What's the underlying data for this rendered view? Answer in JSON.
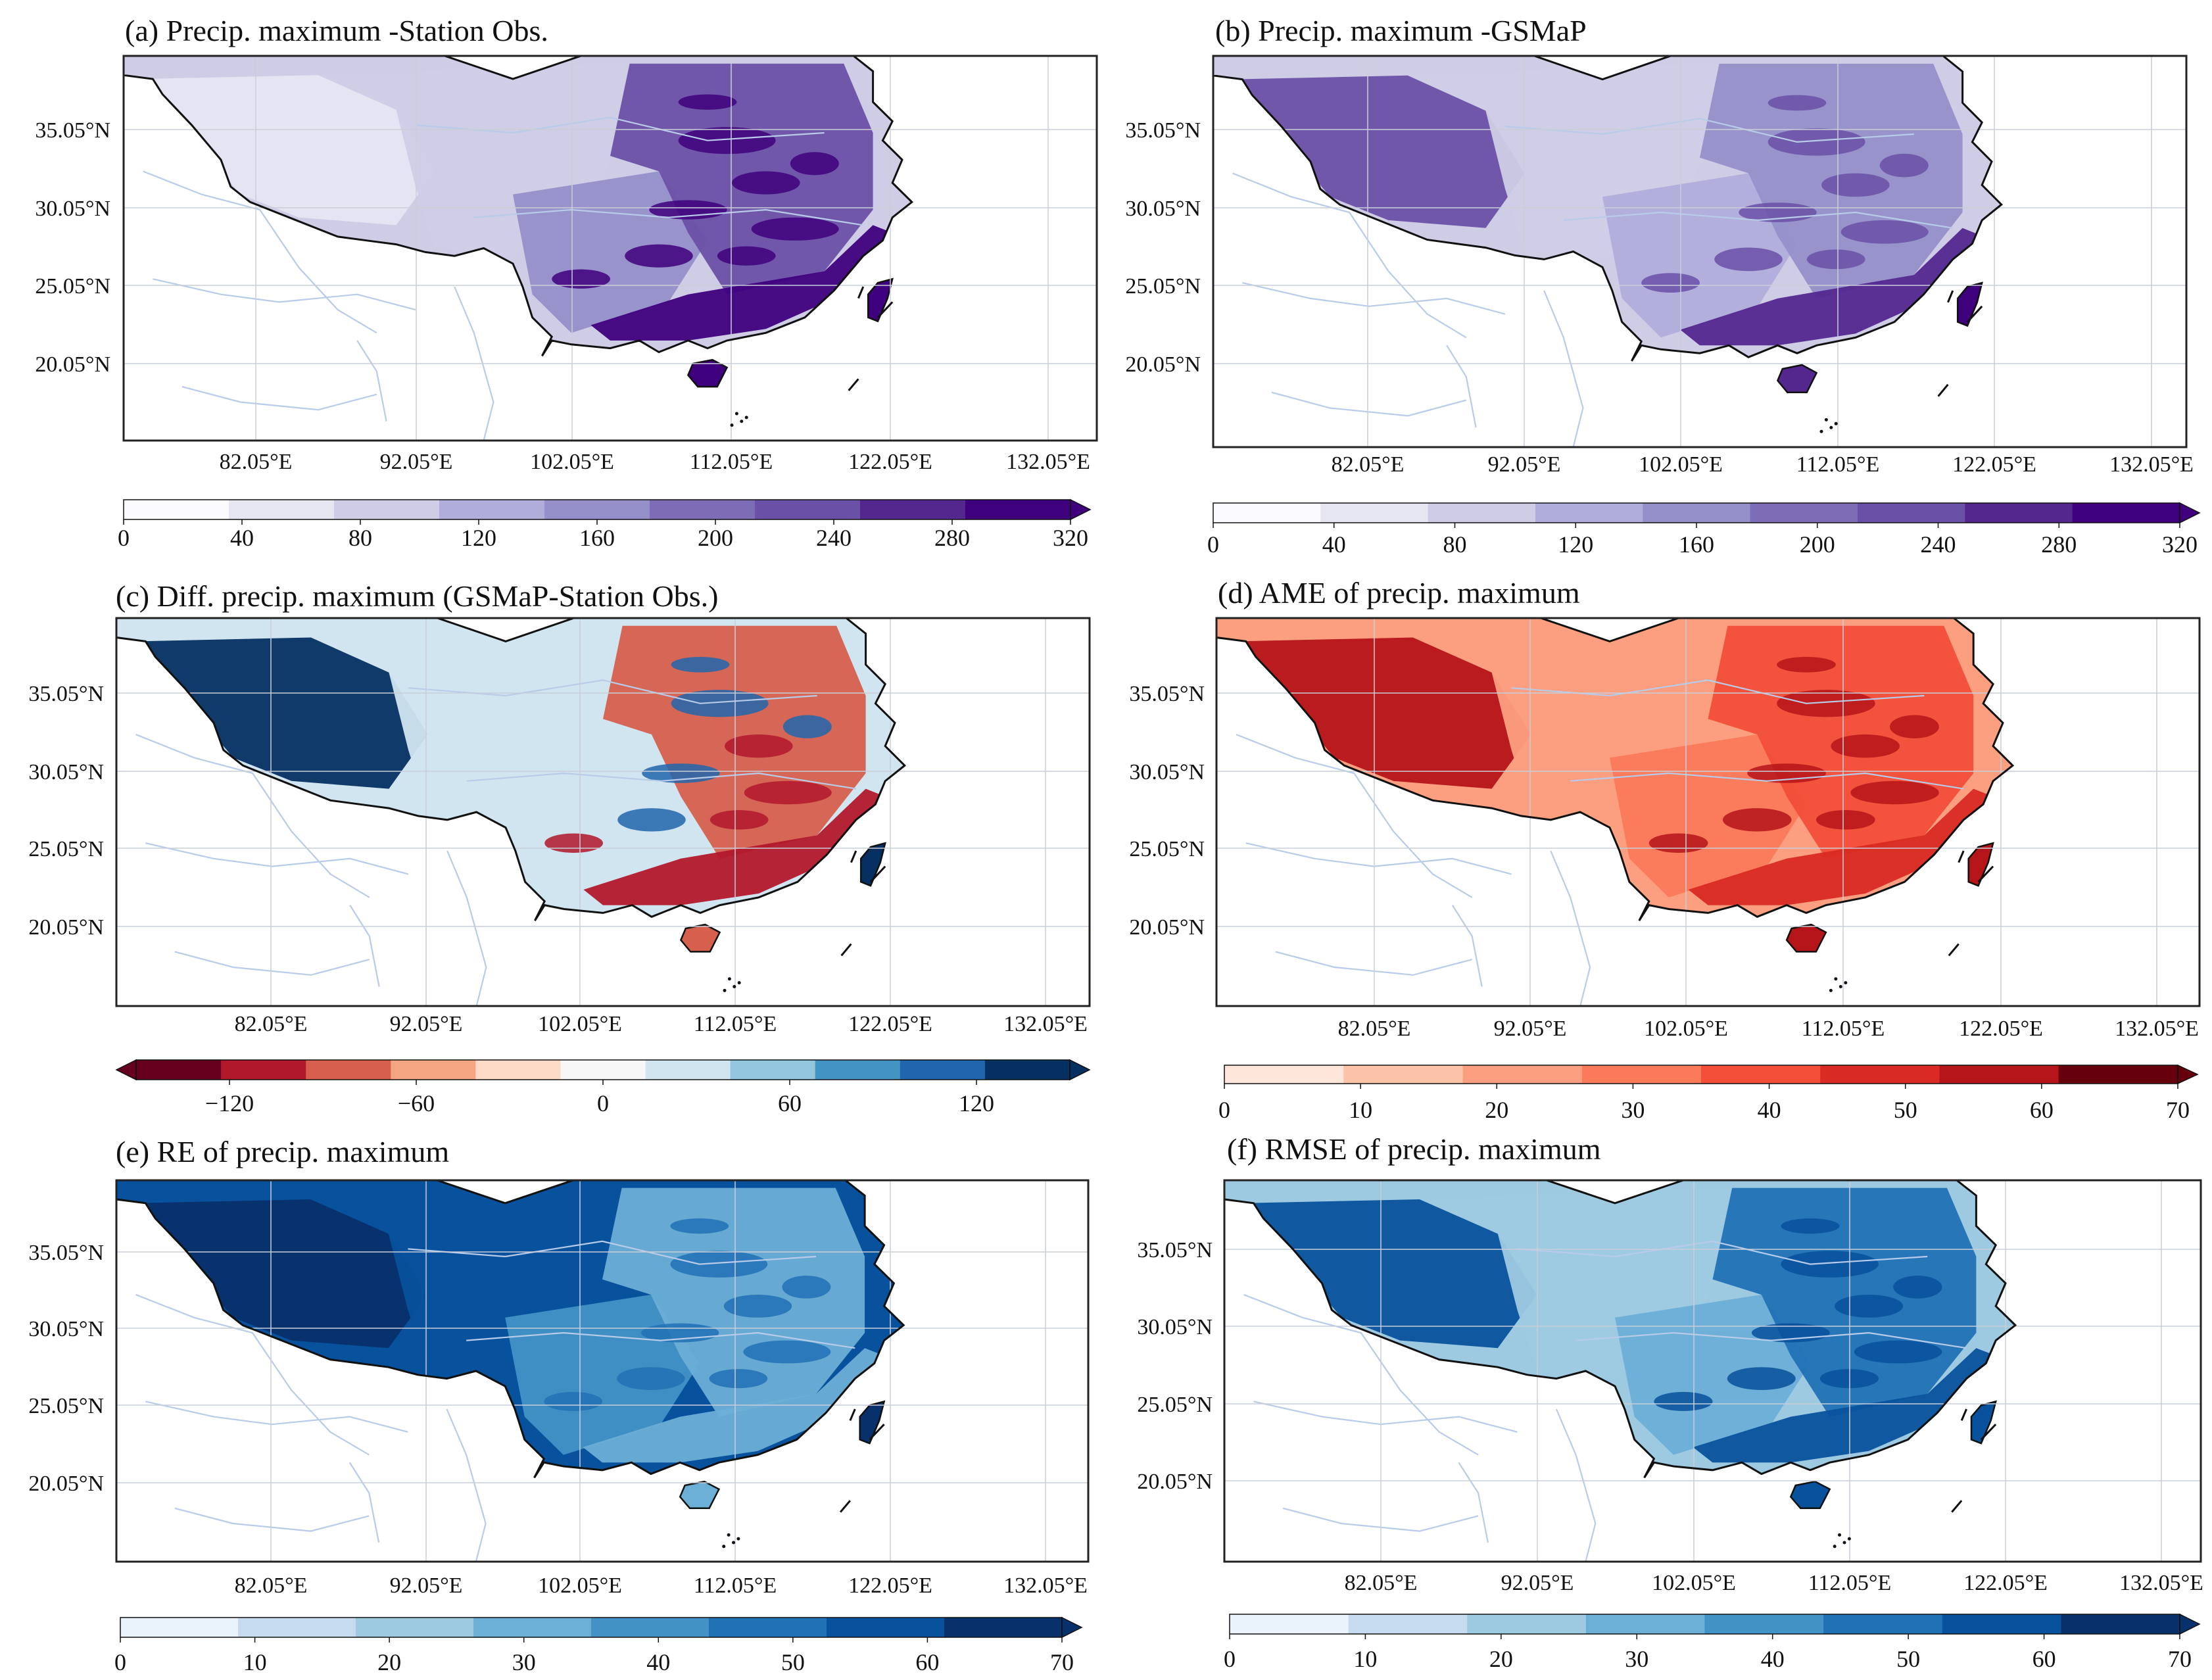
{
  "figure": {
    "panels": [
      {
        "id": "a",
        "title": "(a) Precip. maximum -Station Obs.",
        "colormap": "purples",
        "colorbar": {
          "min": 0,
          "max": 320,
          "ticks": [
            "0",
            "40",
            "80",
            "120",
            "160",
            "200",
            "240",
            "280",
            "320"
          ],
          "diverging": false
        },
        "field_levels": {
          "west": 0.12,
          "plateau": 0.2,
          "basin": 0.45,
          "east": 0.72,
          "coast": 0.95,
          "taiwan": 0.95,
          "hainan": 0.95
        },
        "lat_labels": [
          "35.05°N",
          "30.05°N",
          "25.05°N",
          "20.05°N"
        ],
        "lon_labels": [
          "82.05°E",
          "92.05°E",
          "102.05°E",
          "112.05°E",
          "122.05°E",
          "132.05°E"
        ]
      },
      {
        "id": "b",
        "title": "(b) Precip. maximum -GSMaP",
        "colormap": "purples",
        "colorbar": {
          "min": 0,
          "max": 320,
          "ticks": [
            "0",
            "40",
            "80",
            "120",
            "160",
            "200",
            "240",
            "280",
            "320"
          ],
          "diverging": false
        },
        "field_levels": {
          "west": 0.8,
          "plateau": 0.25,
          "basin": 0.4,
          "east": 0.55,
          "coast": 0.9,
          "taiwan": 0.95,
          "hainan": 0.9
        },
        "lat_labels": [
          "35.05°N",
          "30.05°N",
          "25.05°N",
          "20.05°N"
        ],
        "lon_labels": [
          "82.05°E",
          "92.05°E",
          "102.05°E",
          "112.05°E",
          "122.05°E",
          "132.05°E"
        ]
      },
      {
        "id": "c",
        "title": "(c) Diff. precip. maximum (GSMaP-Station Obs.)",
        "colormap": "rdbu",
        "colorbar": {
          "min": -150,
          "max": 150,
          "ticks": [
            "−120",
            "−60",
            "0",
            "60",
            "120"
          ],
          "tick_values": [
            -120,
            -60,
            0,
            60,
            120
          ],
          "diverging": true
        },
        "field_levels": {
          "west": 0.95,
          "plateau": 0.6,
          "basin": 0.55,
          "east": 0.2,
          "coast": 0.1,
          "taiwan": 0.95,
          "hainan": 0.15
        },
        "lat_labels": [
          "35.05°N",
          "30.05°N",
          "25.05°N",
          "20.05°N"
        ],
        "lon_labels": [
          "82.05°E",
          "92.05°E",
          "102.05°E",
          "112.05°E",
          "122.05°E",
          "132.05°E"
        ]
      },
      {
        "id": "d",
        "title": "(d) AME of precip. maximum",
        "colormap": "reds",
        "colorbar": {
          "min": 0,
          "max": 70,
          "ticks": [
            "0",
            "10",
            "20",
            "30",
            "40",
            "50",
            "60",
            "70"
          ],
          "diverging": false
        },
        "field_levels": {
          "west": 0.85,
          "plateau": 0.3,
          "basin": 0.45,
          "east": 0.6,
          "coast": 0.75,
          "taiwan": 0.85,
          "hainan": 0.85
        },
        "lat_labels": [
          "35.05°N",
          "30.05°N",
          "25.05°N",
          "20.05°N"
        ],
        "lon_labels": [
          "82.05°E",
          "92.05°E",
          "102.05°E",
          "112.05°E",
          "122.05°E",
          "132.05°E"
        ]
      },
      {
        "id": "e",
        "title": "(e) RE of precip. maximum",
        "colormap": "blues",
        "colorbar": {
          "min": 0,
          "max": 70,
          "ticks": [
            "0",
            "10",
            "20",
            "30",
            "40",
            "50",
            "60",
            "70"
          ],
          "diverging": false
        },
        "field_levels": {
          "west": 1.0,
          "plateau": 0.85,
          "basin": 0.6,
          "east": 0.45,
          "coast": 0.45,
          "taiwan": 0.95,
          "hainan": 0.4
        },
        "lat_labels": [
          "35.05°N",
          "30.05°N",
          "25.05°N",
          "20.05°N"
        ],
        "lon_labels": [
          "82.05°E",
          "92.05°E",
          "102.05°E",
          "112.05°E",
          "122.05°E",
          "132.05°E"
        ]
      },
      {
        "id": "f",
        "title": "(f) RMSE of precip. maximum",
        "colormap": "blues",
        "colorbar": {
          "min": 0,
          "max": 70,
          "ticks": [
            "0",
            "10",
            "20",
            "30",
            "40",
            "50",
            "60",
            "70"
          ],
          "diverging": false
        },
        "field_levels": {
          "west": 0.85,
          "plateau": 0.25,
          "basin": 0.45,
          "east": 0.7,
          "coast": 0.9,
          "taiwan": 0.9,
          "hainan": 0.9
        },
        "lat_labels": [
          "35.05°N",
          "30.05°N",
          "25.05°N",
          "20.05°N"
        ],
        "lon_labels": [
          "82.05°E",
          "92.05°E",
          "102.05°E",
          "112.05°E",
          "122.05°E",
          "132.05°E"
        ]
      }
    ],
    "colors": {
      "purples": [
        "#fbfaff",
        "#e6e5f2",
        "#cfcde6",
        "#b1addb",
        "#9590c9",
        "#7c6db6",
        "#6a50a7",
        "#54278f",
        "#3f007d"
      ],
      "reds": [
        "#fee5d9",
        "#fcc3a8",
        "#fc9f80",
        "#fb7a5a",
        "#f24e38",
        "#d92a23",
        "#b51419",
        "#67000d"
      ],
      "blues": [
        "#eaf2fb",
        "#c6dbef",
        "#9ecae1",
        "#6baed6",
        "#4292c6",
        "#2171b5",
        "#08519c",
        "#08306b"
      ],
      "rdbu": [
        "#67001f",
        "#b2182b",
        "#d6604d",
        "#f4a582",
        "#fddbc7",
        "#f7f7f7",
        "#d1e5f0",
        "#92c5de",
        "#4393c3",
        "#2166ac",
        "#053061"
      ]
    }
  }
}
